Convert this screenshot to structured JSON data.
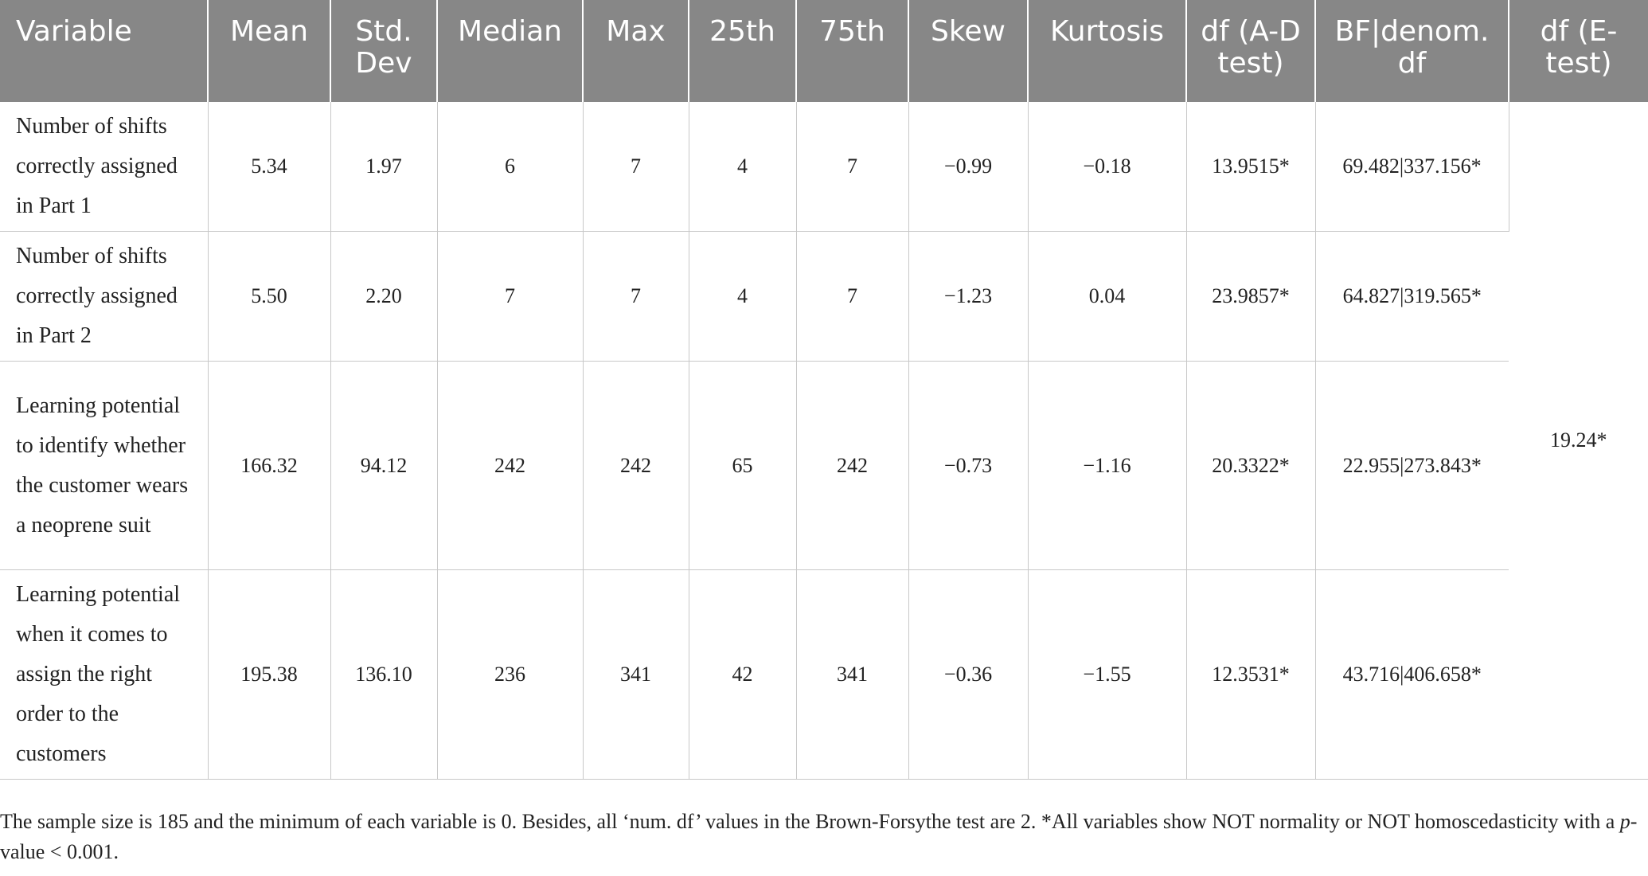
{
  "table": {
    "headers": [
      "Variable",
      "Mean",
      "Std. Dev",
      "Median",
      "Max",
      "25th",
      "75th",
      "Skew",
      "Kurtosis",
      "df (A-D test)",
      "BF|denom. df",
      "df (E-test)"
    ],
    "rows": [
      {
        "variable": "Number of shifts correctly assigned in Part 1",
        "mean": "5.34",
        "std_dev": "1.97",
        "median": "6",
        "max": "7",
        "p25": "4",
        "p75": "7",
        "skew": "−0.99",
        "kurtosis": "−0.18",
        "df_ad": "13.9515*",
        "bf_denom_df": "69.482|337.156*"
      },
      {
        "variable": "Number of shifts correctly assigned in Part 2",
        "mean": "5.50",
        "std_dev": "2.20",
        "median": "7",
        "max": "7",
        "p25": "4",
        "p75": "7",
        "skew": "−1.23",
        "kurtosis": "0.04",
        "df_ad": "23.9857*",
        "bf_denom_df": "64.827|319.565*"
      },
      {
        "variable": "Learning potential to identify whether the customer wears a neoprene suit",
        "mean": "166.32",
        "std_dev": "94.12",
        "median": "242",
        "max": "242",
        "p25": "65",
        "p75": "242",
        "skew": "−0.73",
        "kurtosis": "−1.16",
        "df_ad": "20.3322*",
        "bf_denom_df": "22.955|273.843*"
      },
      {
        "variable": "Learning potential when it comes to assign the right order to the customers",
        "mean": "195.38",
        "std_dev": "136.10",
        "median": "236",
        "max": "341",
        "p25": "42",
        "p75": "341",
        "skew": "−0.36",
        "kurtosis": "−1.55",
        "df_ad": "12.3531*",
        "bf_denom_df": "43.716|406.658*"
      }
    ],
    "df_e_test": "19.24*"
  },
  "footnote": {
    "part1": "The sample size is 185 and the minimum of each variable is 0. Besides, all ‘num. df’ values in the Brown-Forsythe test are 2. *All variables show NOT normality or NOT homoscedasticity with a ",
    "p_italic": "p",
    "part2": "-value < 0.001."
  },
  "colors": {
    "header_bg": "#878787",
    "header_text": "#ffffff",
    "grid": "#c8c8c8",
    "body_text": "#222222"
  }
}
